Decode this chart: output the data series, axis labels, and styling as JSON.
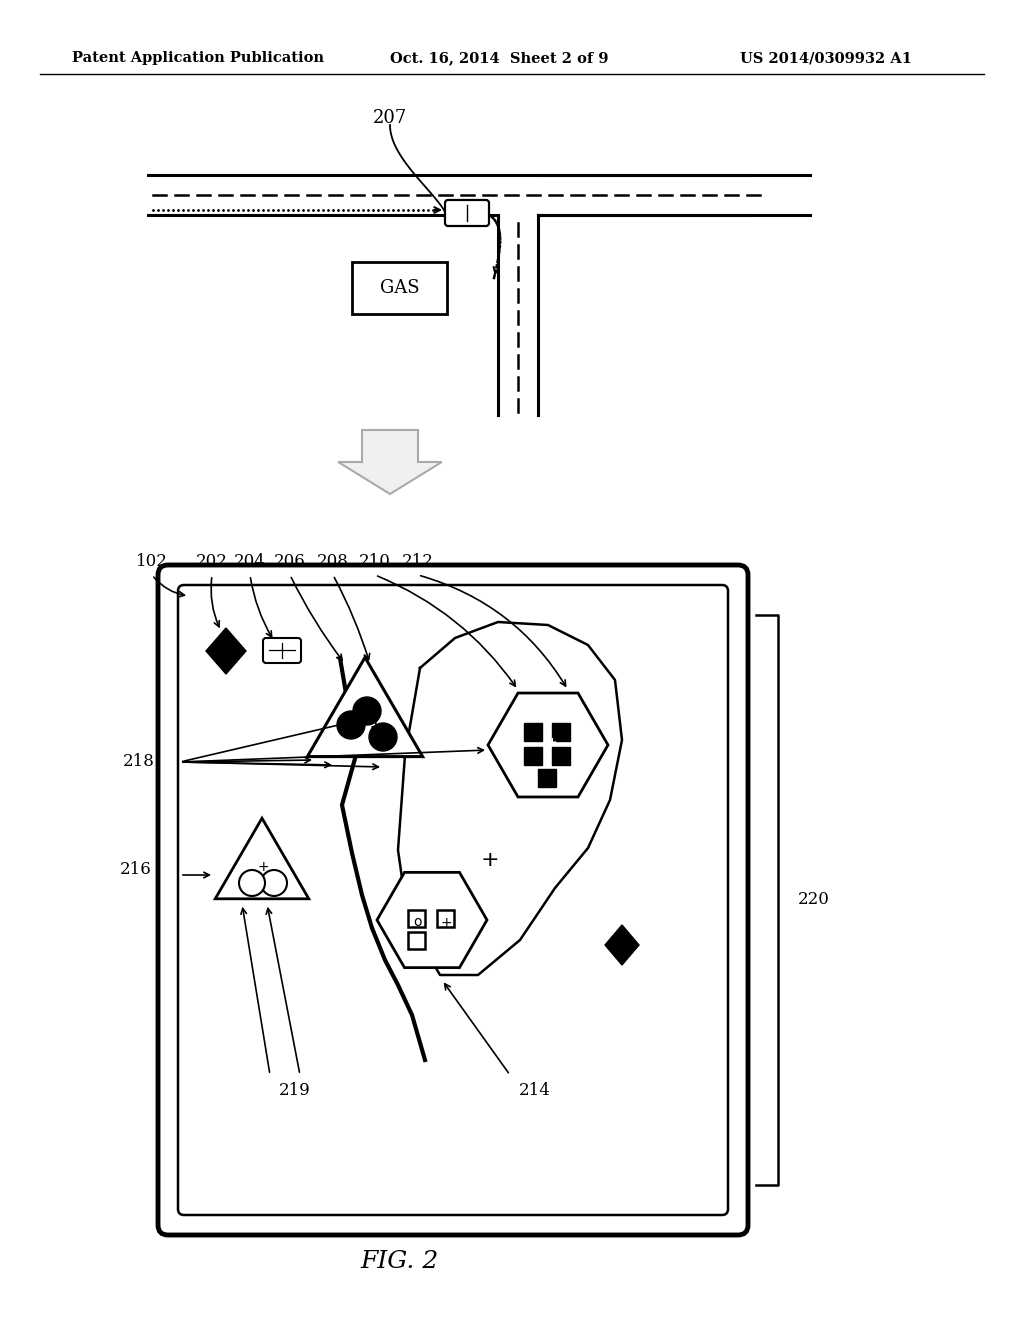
{
  "header_left": "Patent Application Publication",
  "header_mid": "Oct. 16, 2014  Sheet 2 of 9",
  "header_right": "US 2014/0309932 A1",
  "fig_label": "FIG. 2",
  "bg": "#ffffff"
}
